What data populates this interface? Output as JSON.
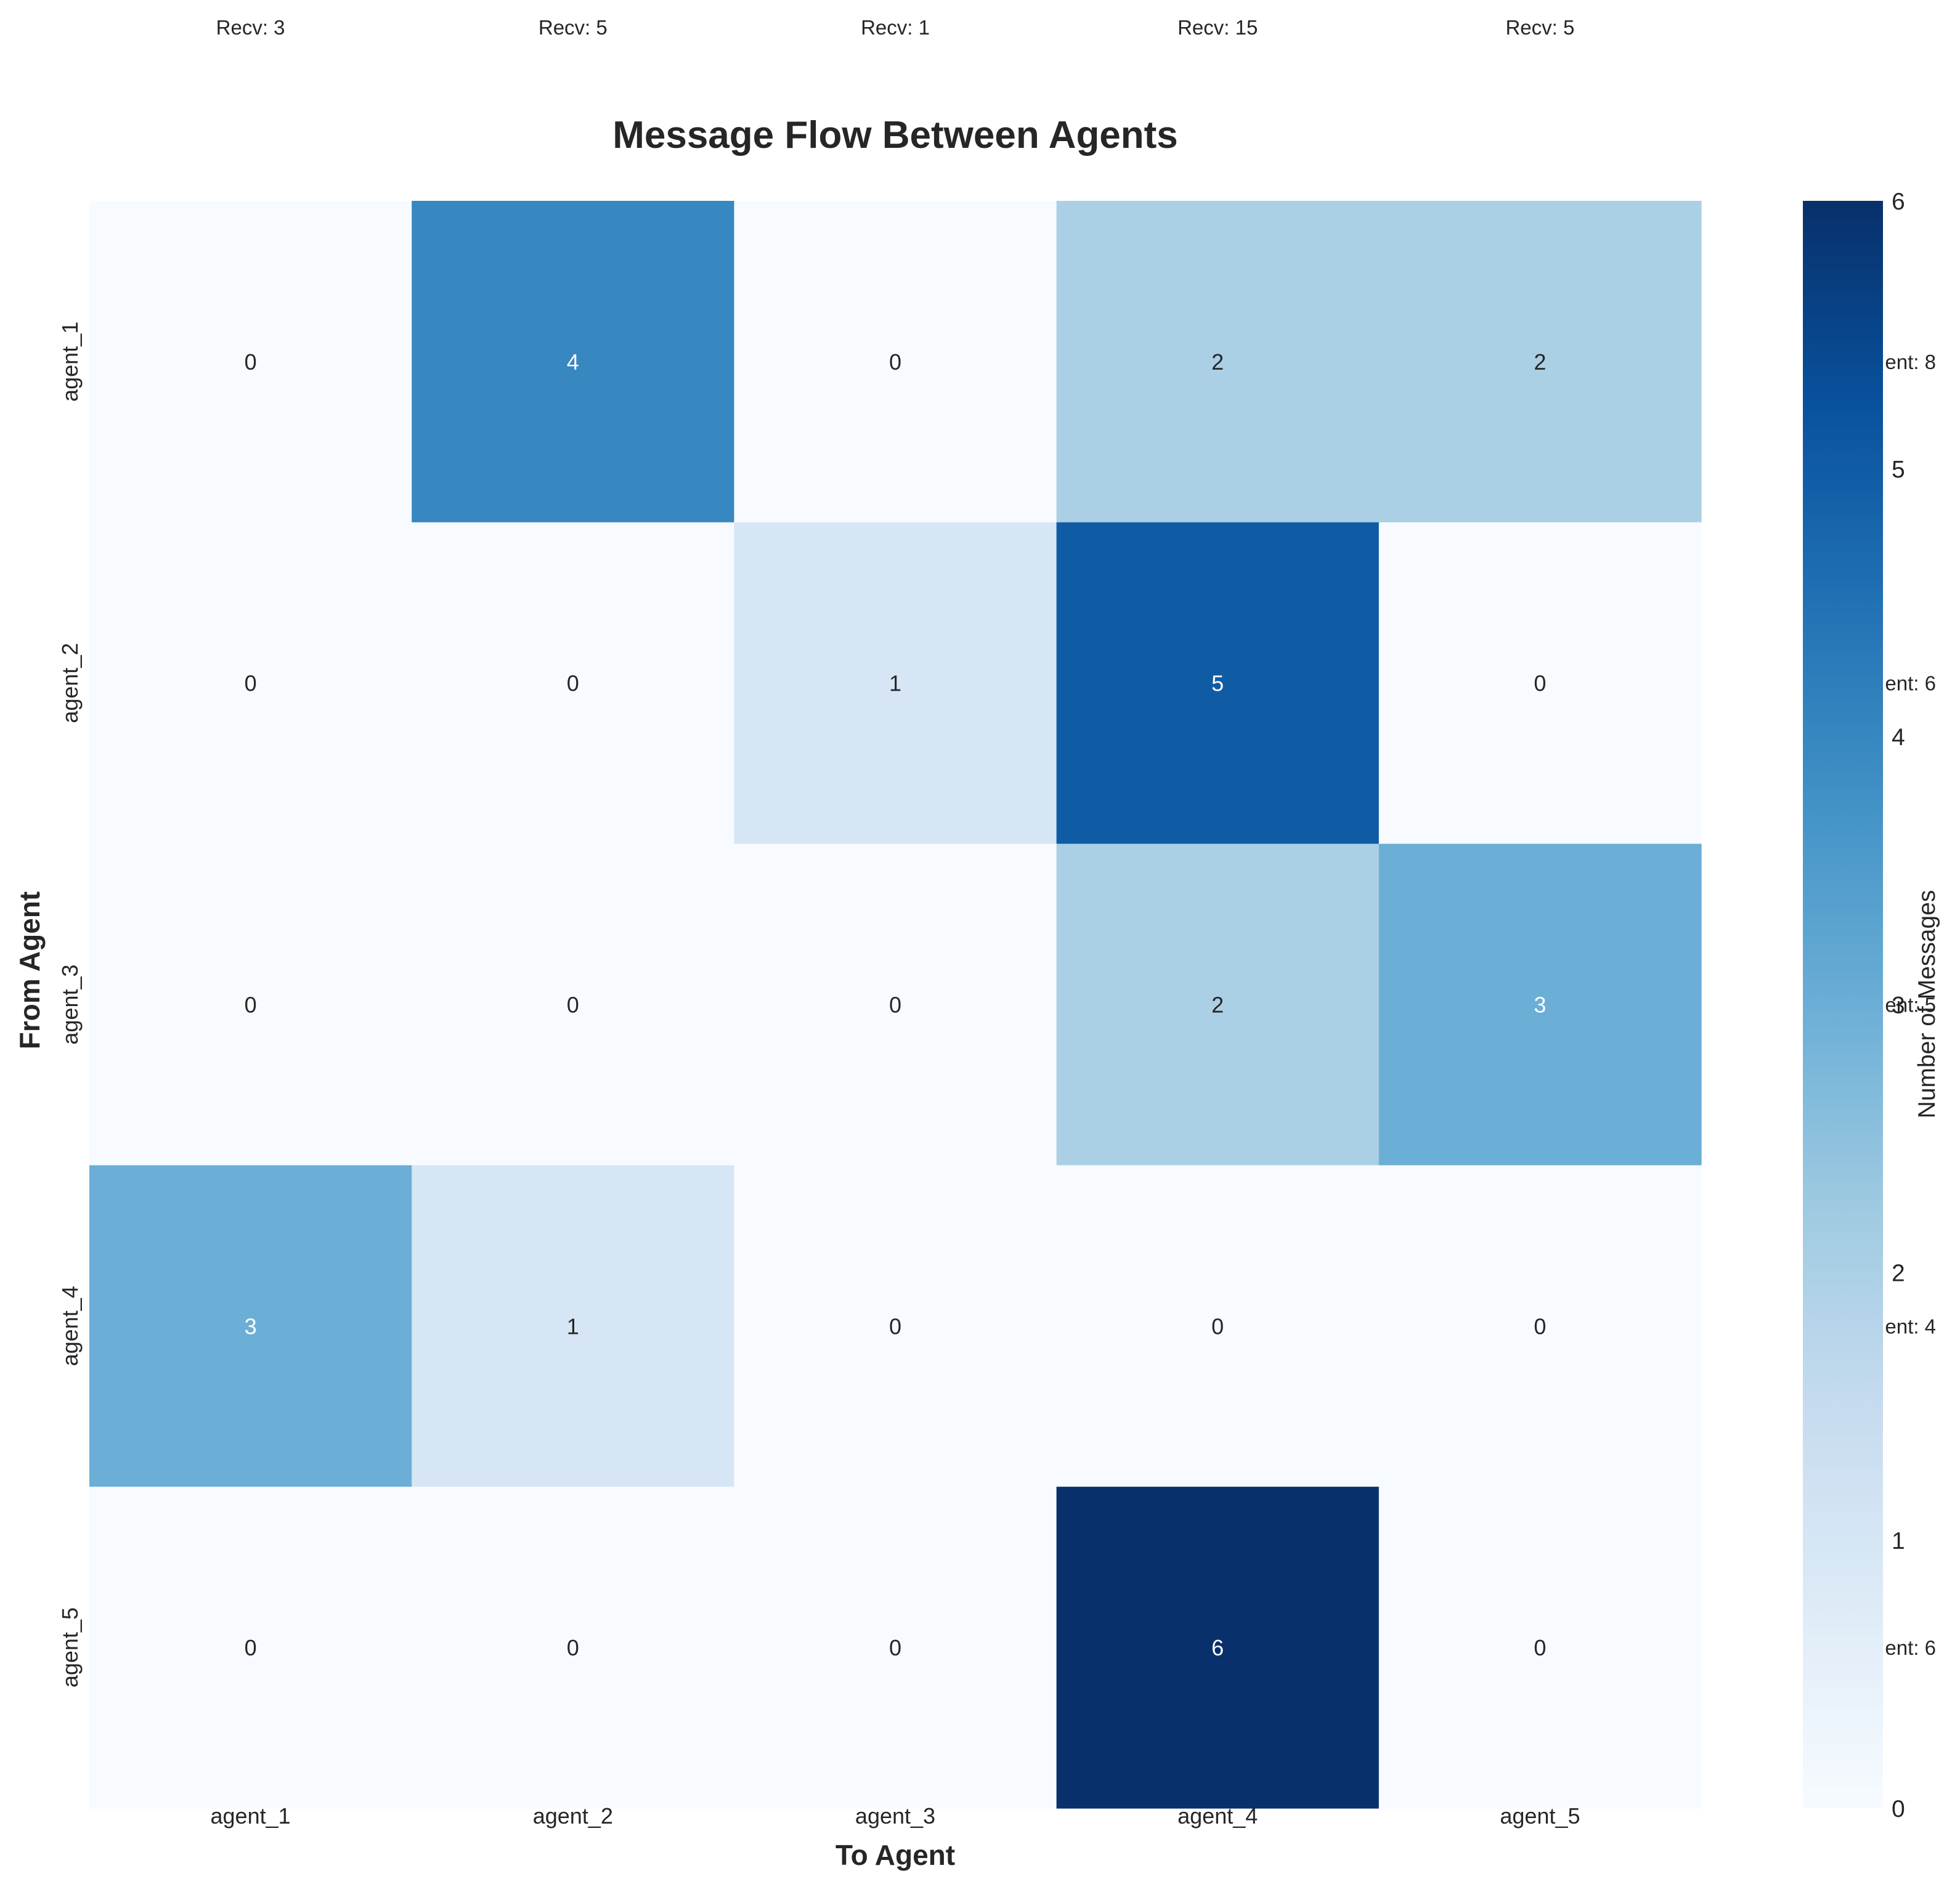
{
  "chart_data": {
    "type": "heatmap",
    "title": "Message Flow Between Agents",
    "xlabel": "To Agent",
    "ylabel": "From Agent",
    "x_categories": [
      "agent_1",
      "agent_2",
      "agent_3",
      "agent_4",
      "agent_5"
    ],
    "y_categories": [
      "agent_1",
      "agent_2",
      "agent_3",
      "agent_4",
      "agent_5"
    ],
    "values": [
      [
        0,
        4,
        0,
        2,
        2
      ],
      [
        0,
        0,
        1,
        5,
        0
      ],
      [
        0,
        0,
        0,
        2,
        3
      ],
      [
        3,
        1,
        0,
        0,
        0
      ],
      [
        0,
        0,
        0,
        6,
        0
      ]
    ],
    "colorbar": {
      "label": "Number of Messages",
      "range": [
        0,
        6
      ],
      "ticks": [
        "0",
        "1",
        "2",
        "3",
        "4",
        "5",
        "6"
      ],
      "colormap": "Blues",
      "colors": [
        "#f7fbff",
        "#deebf7",
        "#c6dbef",
        "#9ecae1",
        "#6baed6",
        "#4292c6",
        "#2171b5",
        "#08519c",
        "#08306b"
      ]
    },
    "column_totals": [
      "Recv: 3",
      "Recv: 5",
      "Recv: 1",
      "Recv: 15",
      "Recv: 5"
    ],
    "row_totals": [
      "ent: 8",
      "ent: 6",
      "ent: 5",
      "ent: 4",
      "ent: 6"
    ]
  }
}
